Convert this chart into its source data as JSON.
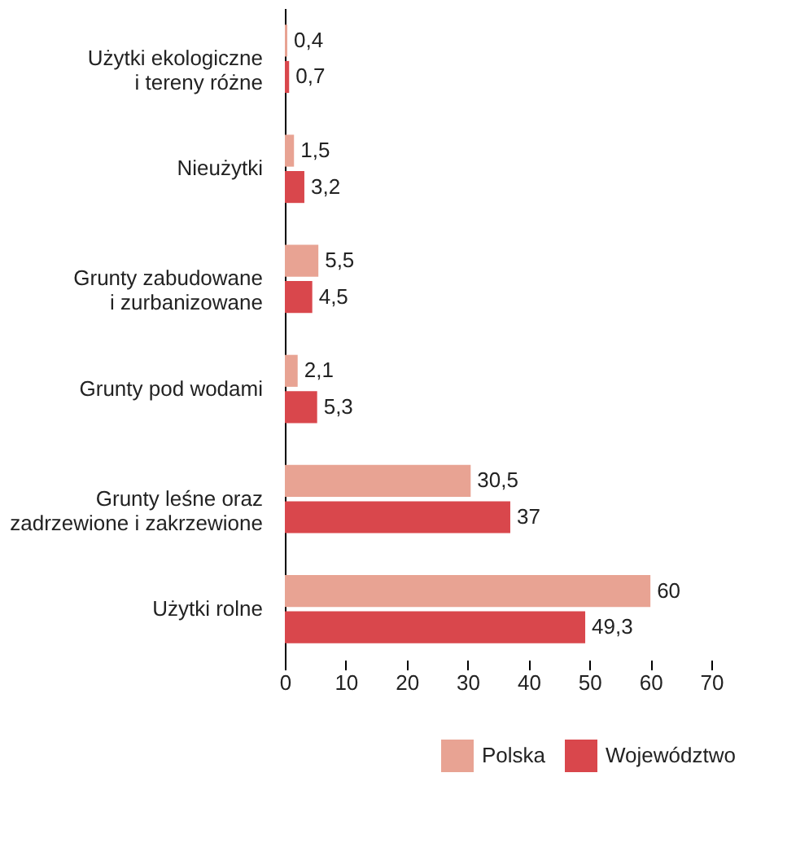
{
  "chart_data": {
    "type": "bar",
    "orientation": "horizontal",
    "categories": [
      "Użytki ekologiczne\ni tereny różne",
      "Nieużytki",
      "Grunty zabudowane\ni zurbanizowane",
      "Grunty pod wodami",
      "Grunty leśne oraz\nzadrzewione i zakrzewione",
      "Użytki rolne"
    ],
    "series": [
      {
        "name": "Polska",
        "color": "#e8a393",
        "values": [
          0.4,
          1.5,
          5.5,
          2.1,
          30.5,
          60
        ],
        "value_labels": [
          "0,4",
          "1,5",
          "5,5",
          "2,1",
          "30,5",
          "60"
        ]
      },
      {
        "name": "Województwo",
        "color": "#d9474c",
        "values": [
          0.7,
          3.2,
          4.5,
          5.3,
          37,
          49.3
        ],
        "value_labels": [
          "0,7",
          "3,2",
          "4,5",
          "5,3",
          "37",
          "49,3"
        ]
      }
    ],
    "xlim": [
      0,
      70
    ],
    "xticks": [
      0,
      10,
      20,
      30,
      40,
      50,
      60,
      70
    ],
    "grid": false,
    "legend": "bottom right"
  }
}
